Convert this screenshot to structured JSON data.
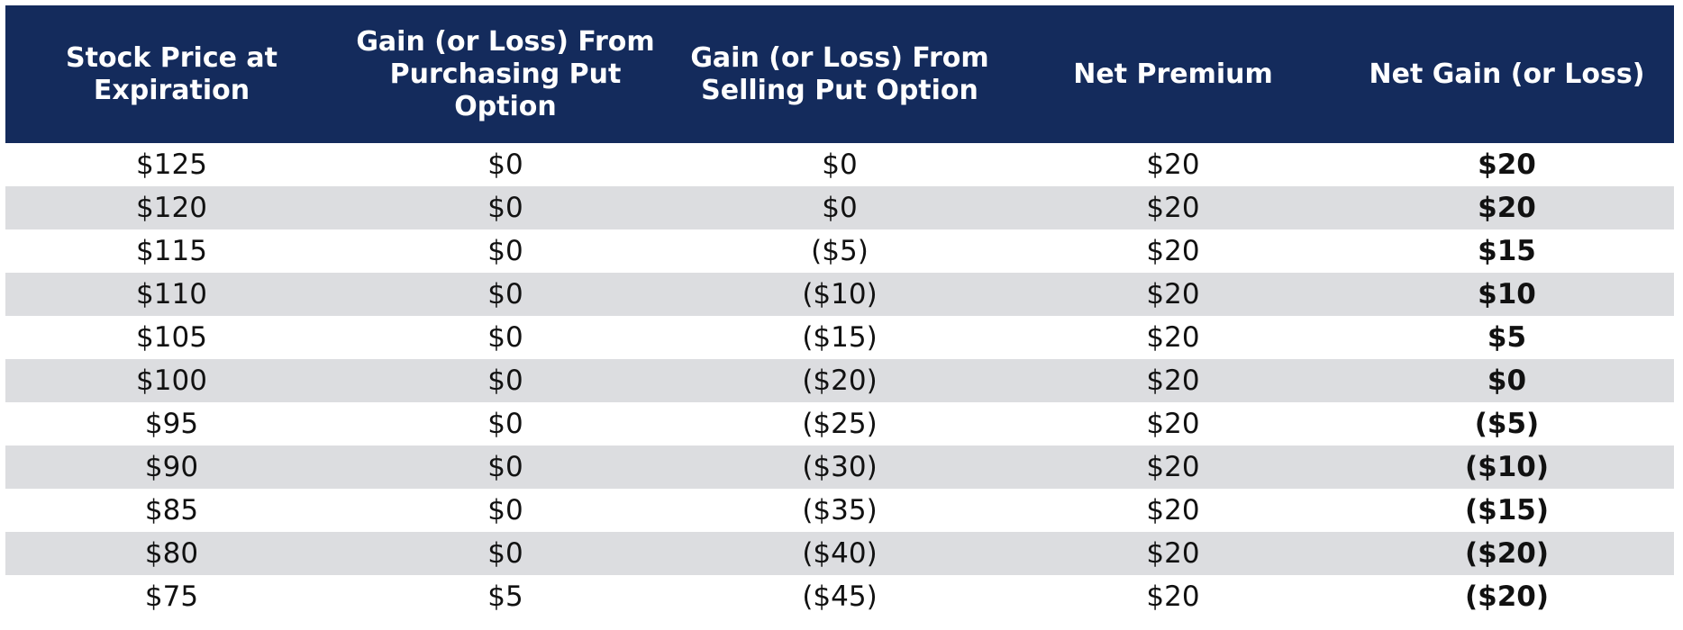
{
  "table": {
    "headers": [
      "Stock Price at Expiration",
      "Gain (or Loss) From Purchasing Put Option",
      "Gain (or Loss) From Selling Put Option",
      "Net Premium",
      "Net Gain (or Loss)"
    ],
    "rows": [
      [
        "$125",
        "$0",
        "$0",
        "$20",
        "$20"
      ],
      [
        "$120",
        "$0",
        "$0",
        "$20",
        "$20"
      ],
      [
        "$115",
        "$0",
        "($5)",
        "$20",
        "$15"
      ],
      [
        "$110",
        "$0",
        "($10)",
        "$20",
        "$10"
      ],
      [
        "$105",
        "$0",
        "($15)",
        "$20",
        "$5"
      ],
      [
        "$100",
        "$0",
        "($20)",
        "$20",
        "$0"
      ],
      [
        "$95",
        "$0",
        "($25)",
        "$20",
        "($5)"
      ],
      [
        "$90",
        "$0",
        "($30)",
        "$20",
        "($10)"
      ],
      [
        "$85",
        "$0",
        "($35)",
        "$20",
        "($15)"
      ],
      [
        "$80",
        "$0",
        "($40)",
        "$20",
        "($20)"
      ],
      [
        "$75",
        "$5",
        "($45)",
        "$20",
        "($20)"
      ]
    ]
  }
}
